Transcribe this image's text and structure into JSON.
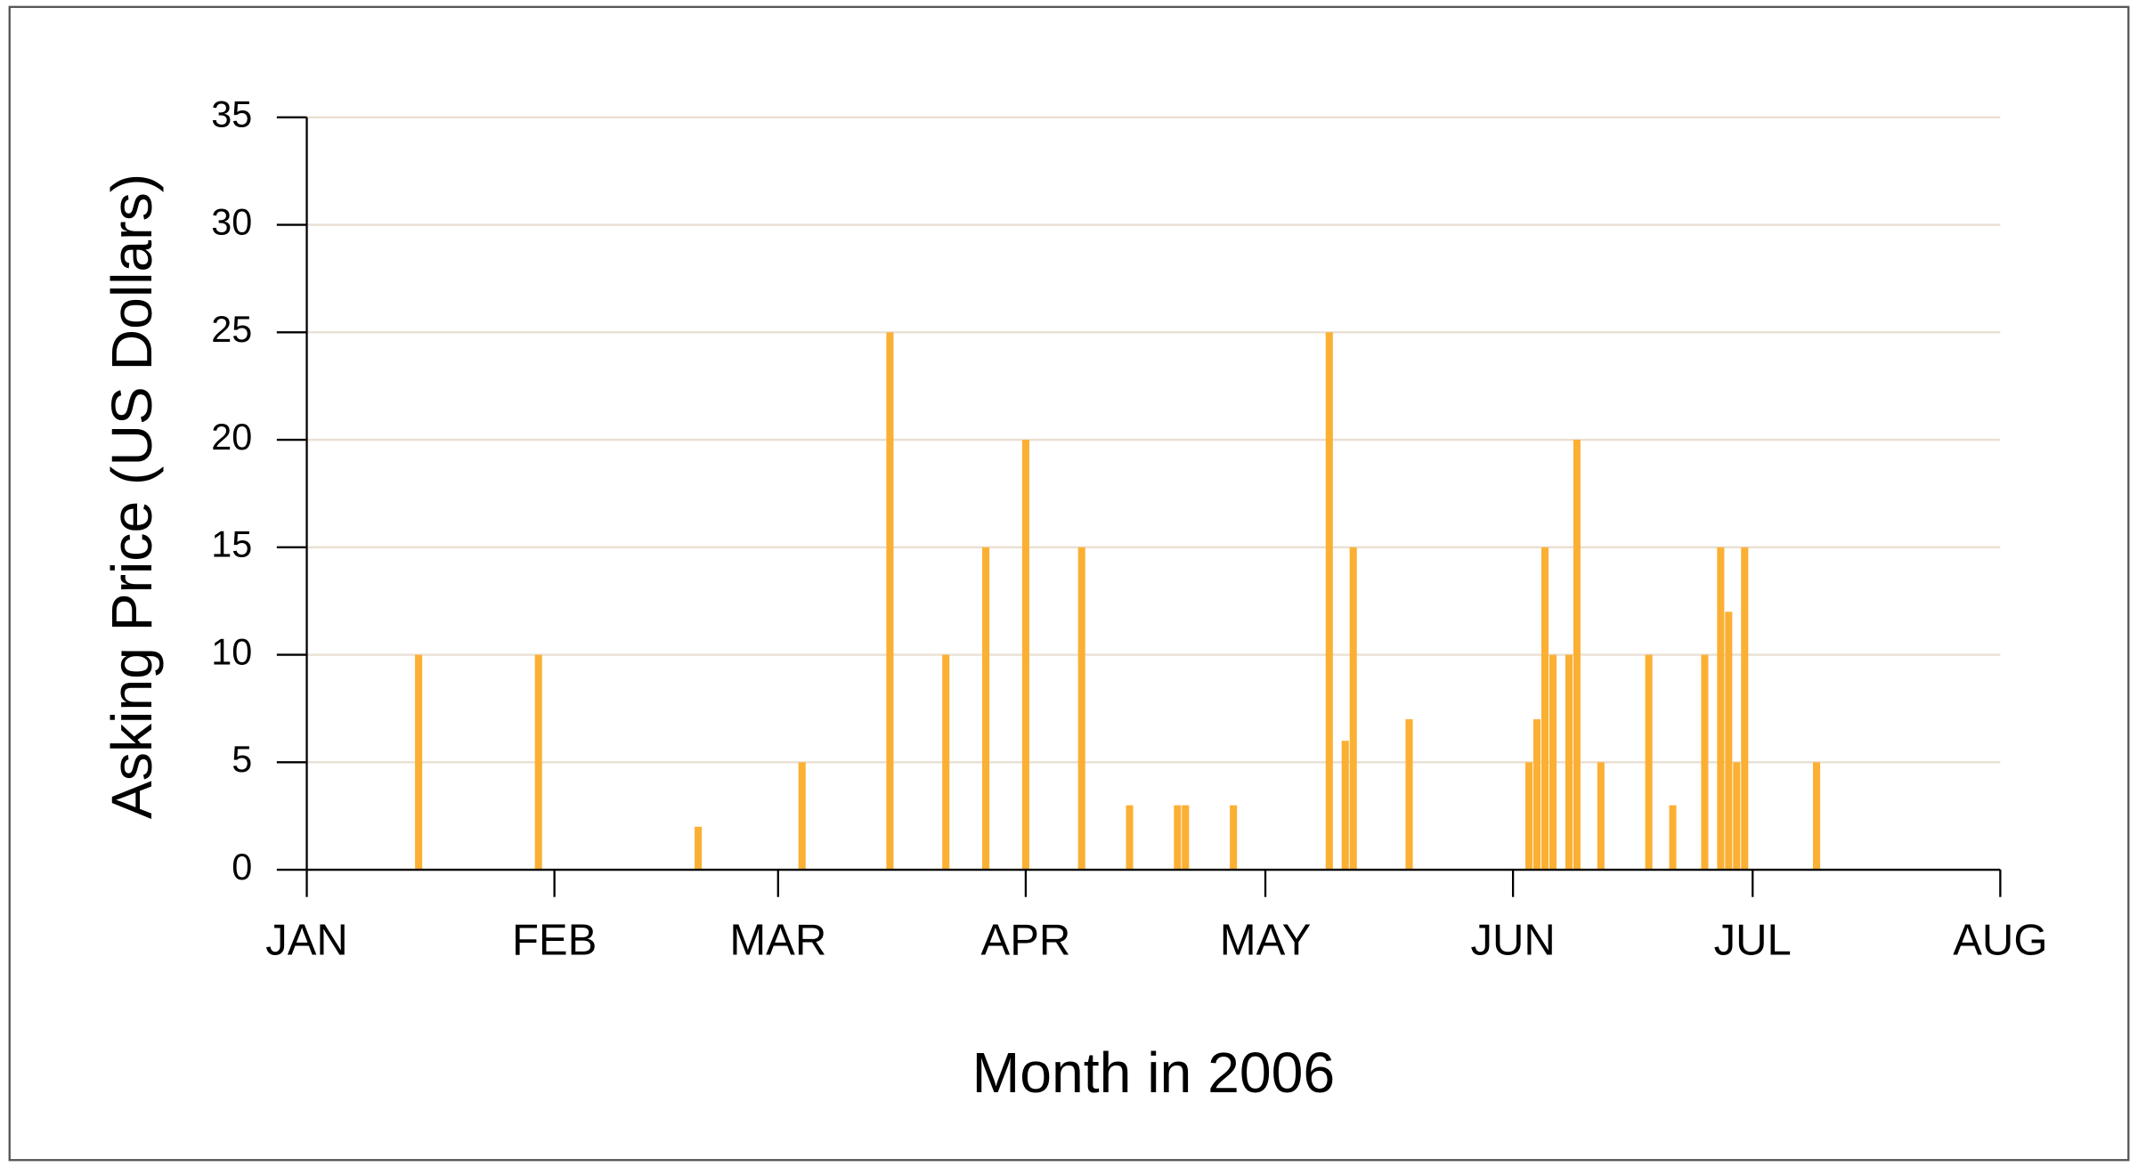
{
  "chart_data": {
    "type": "bar",
    "xlabel": "Month in 2006",
    "ylabel": "Asking Price (US Dollars)",
    "color": "#fbb034",
    "x": [
      14,
      29,
      49,
      62,
      73,
      80,
      85,
      90,
      97,
      103,
      109,
      110,
      116,
      128,
      130,
      131,
      138,
      153,
      154,
      155,
      156,
      158,
      159,
      162,
      168,
      171,
      175,
      177,
      178,
      179,
      180,
      189
    ],
    "values": [
      10,
      10,
      2,
      5,
      25,
      10,
      15,
      20,
      15,
      3,
      3,
      3,
      3,
      25,
      6,
      15,
      7,
      5,
      7,
      15,
      10,
      10,
      20,
      5,
      10,
      3,
      10,
      15,
      12,
      5,
      15,
      5
    ],
    "xlim": [
      0,
      212
    ],
    "xticks": [
      {
        "value": 0,
        "label": "JAN"
      },
      {
        "value": 31,
        "label": "FEB"
      },
      {
        "value": 59,
        "label": "MAR"
      },
      {
        "value": 90,
        "label": "APR"
      },
      {
        "value": 120,
        "label": "MAY"
      },
      {
        "value": 151,
        "label": "JUN"
      },
      {
        "value": 181,
        "label": "JUL"
      },
      {
        "value": 212,
        "label": "AUG"
      }
    ],
    "ylim": [
      0,
      35
    ],
    "yticks": [
      0,
      5,
      10,
      15,
      20,
      25,
      30,
      35
    ],
    "grid": true
  }
}
